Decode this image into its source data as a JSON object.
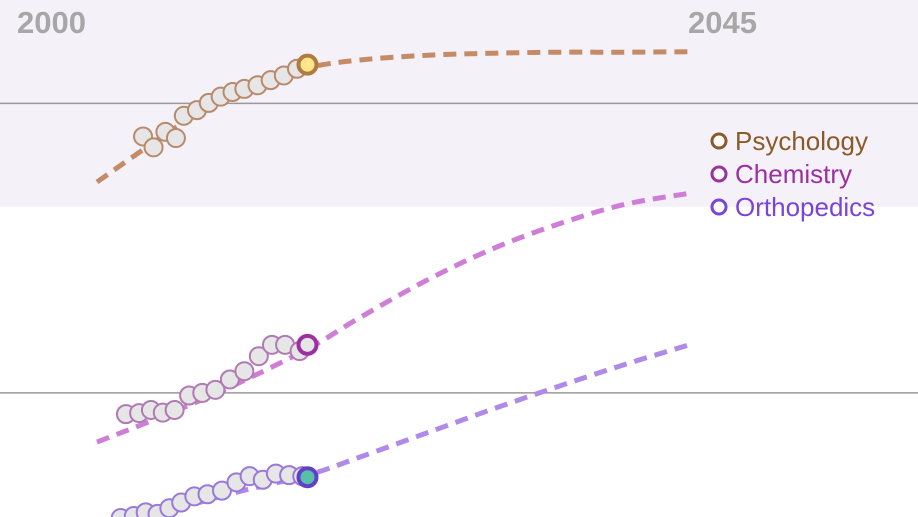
{
  "chart_data": {
    "type": "scatter",
    "title": "",
    "xlabel": "",
    "ylabel": "",
    "x_range": [
      2000,
      2045
    ],
    "y_range": [
      0,
      100
    ],
    "tick_labels": [
      "2000",
      "2045"
    ],
    "grid": true,
    "shaded_band": [
      60,
      100
    ],
    "legend": {
      "placement": "right",
      "entries": [
        {
          "name": "Psychology",
          "color": "#8b5a2b"
        },
        {
          "name": "Chemistry",
          "color": "#9b30a0"
        },
        {
          "name": "Orthopedics",
          "color": "#7a44d8"
        }
      ]
    },
    "series": [
      {
        "name": "Psychology",
        "marker_color": "#b98a6b",
        "trend_color": "#c58b66",
        "current_fill": "#ffe68a",
        "current_stroke": "#b07a40",
        "points": [
          {
            "x": 2003.5,
            "y": 73.6
          },
          {
            "x": 2004.3,
            "y": 71.5
          },
          {
            "x": 2005.2,
            "y": 74.5
          },
          {
            "x": 2006.0,
            "y": 73.3
          },
          {
            "x": 2006.6,
            "y": 77.6
          },
          {
            "x": 2007.6,
            "y": 78.7
          },
          {
            "x": 2008.5,
            "y": 80.1
          },
          {
            "x": 2009.4,
            "y": 81.3
          },
          {
            "x": 2010.3,
            "y": 82.2
          },
          {
            "x": 2011.2,
            "y": 82.8
          },
          {
            "x": 2012.2,
            "y": 83.5
          },
          {
            "x": 2013.2,
            "y": 84.5
          },
          {
            "x": 2014.2,
            "y": 85.4
          },
          {
            "x": 2015.2,
            "y": 86.7
          }
        ],
        "current": {
          "x": 2016.0,
          "y": 87.5
        },
        "trend": [
          {
            "x": 2000,
            "y": 64.8
          },
          {
            "x": 2004,
            "y": 71.9
          },
          {
            "x": 2008,
            "y": 78.6
          },
          {
            "x": 2012,
            "y": 83.8
          },
          {
            "x": 2016,
            "y": 86.9
          },
          {
            "x": 2020,
            "y": 88.4
          },
          {
            "x": 2025,
            "y": 89.3
          },
          {
            "x": 2030,
            "y": 89.7
          },
          {
            "x": 2035,
            "y": 89.9
          },
          {
            "x": 2040,
            "y": 89.9
          },
          {
            "x": 2045,
            "y": 90.0
          }
        ]
      },
      {
        "name": "Chemistry",
        "marker_color": "#b07ab3",
        "trend_color": "#cf7ed6",
        "current_fill": "#e6e6e6",
        "current_stroke": "#9b30a0",
        "points": [
          {
            "x": 2002.2,
            "y": 19.9
          },
          {
            "x": 2003.2,
            "y": 20.1
          },
          {
            "x": 2004.1,
            "y": 20.7
          },
          {
            "x": 2005.0,
            "y": 20.2
          },
          {
            "x": 2005.9,
            "y": 20.7
          },
          {
            "x": 2007.0,
            "y": 23.5
          },
          {
            "x": 2008.0,
            "y": 24.0
          },
          {
            "x": 2009.0,
            "y": 24.6
          },
          {
            "x": 2010.1,
            "y": 26.6
          },
          {
            "x": 2011.2,
            "y": 28.2
          },
          {
            "x": 2012.3,
            "y": 31.1
          },
          {
            "x": 2013.3,
            "y": 33.3
          },
          {
            "x": 2014.3,
            "y": 33.3
          },
          {
            "x": 2015.4,
            "y": 32.1
          }
        ],
        "current": {
          "x": 2016.0,
          "y": 33.3
        },
        "trend": [
          {
            "x": 2000,
            "y": 14.5
          },
          {
            "x": 2005,
            "y": 19.5
          },
          {
            "x": 2010,
            "y": 25.0
          },
          {
            "x": 2016,
            "y": 32.5
          },
          {
            "x": 2020,
            "y": 38.6
          },
          {
            "x": 2025,
            "y": 45.7
          },
          {
            "x": 2030,
            "y": 51.8
          },
          {
            "x": 2035,
            "y": 56.6
          },
          {
            "x": 2040,
            "y": 60.4
          },
          {
            "x": 2045,
            "y": 62.6
          }
        ]
      },
      {
        "name": "Orthopedics",
        "marker_color": "#9a7ad8",
        "trend_color": "#b08ae8",
        "current_fill": "#58c0a8",
        "current_stroke": "#6040c8",
        "points": [
          {
            "x": 2001.8,
            "y": -0.2
          },
          {
            "x": 2002.8,
            "y": 0.2
          },
          {
            "x": 2003.7,
            "y": 0.9
          },
          {
            "x": 2004.6,
            "y": 0.6
          },
          {
            "x": 2005.5,
            "y": 1.7
          },
          {
            "x": 2006.4,
            "y": 2.8
          },
          {
            "x": 2007.4,
            "y": 4.0
          },
          {
            "x": 2008.4,
            "y": 4.4
          },
          {
            "x": 2009.5,
            "y": 5.1
          },
          {
            "x": 2010.6,
            "y": 6.7
          },
          {
            "x": 2011.6,
            "y": 7.9
          },
          {
            "x": 2012.6,
            "y": 7.2
          },
          {
            "x": 2013.6,
            "y": 8.4
          },
          {
            "x": 2014.6,
            "y": 8.1
          },
          {
            "x": 2015.6,
            "y": 7.9
          }
        ],
        "current": {
          "x": 2016.0,
          "y": 7.7
        },
        "trend": [
          {
            "x": 2000,
            "y": -4.6
          },
          {
            "x": 2005,
            "y": 0.5
          },
          {
            "x": 2010,
            "y": 4.4
          },
          {
            "x": 2016,
            "y": 8.1
          },
          {
            "x": 2020,
            "y": 11.6
          },
          {
            "x": 2025,
            "y": 16.2
          },
          {
            "x": 2030,
            "y": 20.8
          },
          {
            "x": 2035,
            "y": 25.2
          },
          {
            "x": 2040,
            "y": 29.4
          },
          {
            "x": 2045,
            "y": 33.3
          }
        ]
      }
    ]
  }
}
